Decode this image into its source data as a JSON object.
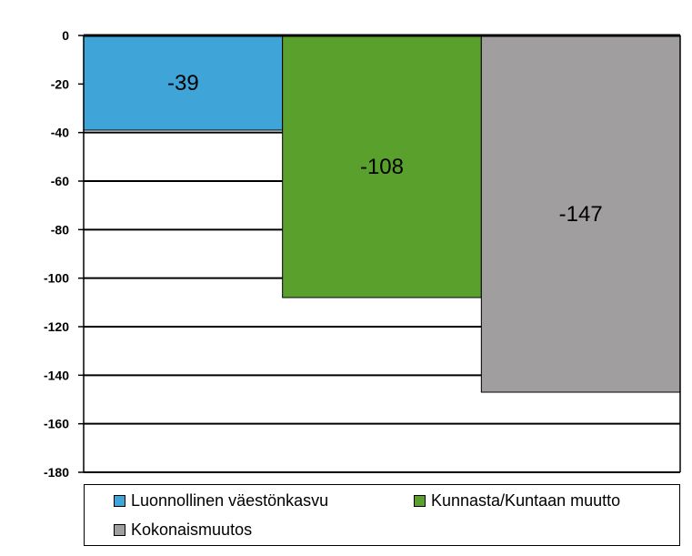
{
  "chart_data": {
    "type": "bar",
    "categories": [
      "Luonnollinen väestönkasvu",
      "Kunnasta/Kuntaan muutto",
      "Kokonaismuutos"
    ],
    "values": [
      -39,
      -108,
      -147
    ],
    "data_labels": [
      "-39",
      "-108",
      "-147"
    ],
    "colors": [
      "#3fa4d8",
      "#5aa02c",
      "#a09e9e"
    ],
    "ylim": [
      -180,
      0
    ],
    "yticks": [
      0,
      -20,
      -40,
      -60,
      -80,
      -100,
      -120,
      -140,
      -160,
      -180
    ],
    "grid": true,
    "legend_placement": "bottom",
    "title": "",
    "xlabel": "",
    "ylabel": ""
  },
  "legend": {
    "items": [
      {
        "label": "Luonnollinen väestönkasvu",
        "color": "#3fa4d8"
      },
      {
        "label": "Kunnasta/Kuntaan muutto",
        "color": "#5aa02c"
      },
      {
        "label": "Kokonaismuutos",
        "color": "#a09e9e"
      }
    ]
  }
}
